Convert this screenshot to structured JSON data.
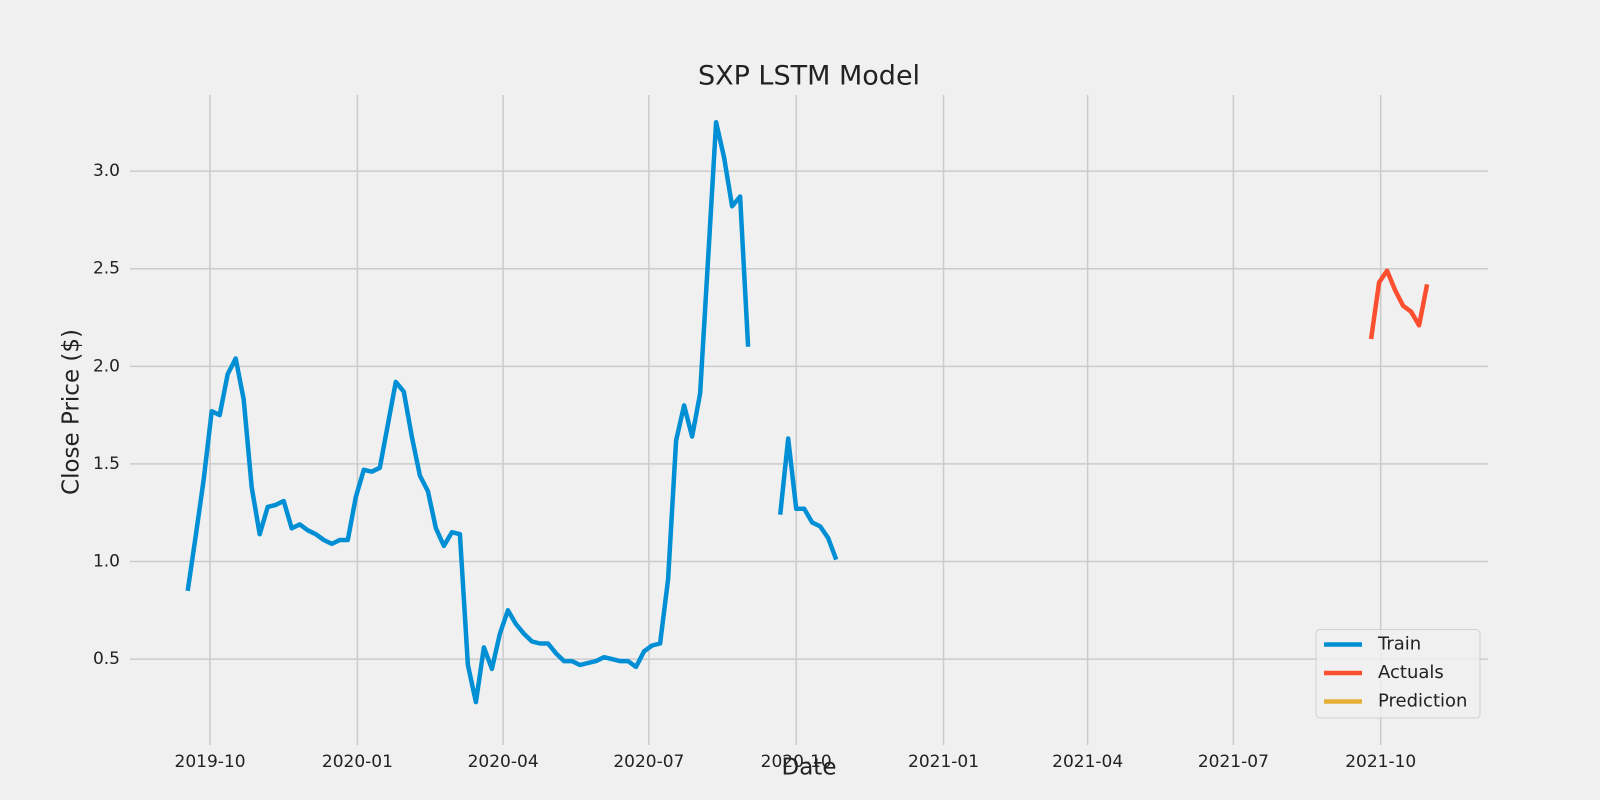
{
  "chart_data": {
    "type": "line",
    "title": "SXP LSTM Model",
    "xlabel": "Date",
    "ylabel": "Close Price ($)",
    "xlim": [
      "2019-08-12",
      "2021-12-07"
    ],
    "xticks": [
      {
        "value": "2019-10-01",
        "label": "2019-10"
      },
      {
        "value": "2020-01-01",
        "label": "2020-01"
      },
      {
        "value": "2020-04-01",
        "label": "2020-04"
      },
      {
        "value": "2020-07-01",
        "label": "2020-07"
      },
      {
        "value": "2020-10-01",
        "label": "2020-10"
      },
      {
        "value": "2021-01-01",
        "label": "2021-01"
      },
      {
        "value": "2021-04-01",
        "label": "2021-04"
      },
      {
        "value": "2021-07-01",
        "label": "2021-07"
      },
      {
        "value": "2021-10-01",
        "label": "2021-10"
      }
    ],
    "ylim": [
      0.06,
      3.39
    ],
    "yticks": [
      0.5,
      {
        "value": 1,
        "label": "1.0"
      },
      1.5,
      {
        "value": 2,
        "label": "2.0"
      },
      2.5,
      {
        "value": 3,
        "label": "3.0"
      }
    ],
    "grid": true,
    "legend": "lower right",
    "series": [
      {
        "name": "Train",
        "color": "#008fd5",
        "x": [
          "2019-09-17",
          "2019-09-22",
          "2019-09-27",
          "2019-10-02",
          "2019-10-07",
          "2019-10-12",
          "2019-10-17",
          "2019-10-22",
          "2019-10-27",
          "2019-11-01",
          "2019-11-06",
          "2019-11-11",
          "2019-11-16",
          "2019-11-21",
          "2019-11-26",
          "2019-12-01",
          "2019-12-06",
          "2019-12-11",
          "2019-12-16",
          "2019-12-21",
          "2019-12-26",
          "2019-12-31",
          "2020-01-05",
          "2020-01-10",
          "2020-01-15",
          "2020-01-20",
          "2020-01-25",
          "2020-01-30",
          "2020-02-04",
          "2020-02-09",
          "2020-02-14",
          "2020-02-19",
          "2020-02-24",
          "2020-02-29",
          "2020-03-05",
          "2020-03-10",
          "2020-03-15",
          "2020-03-20",
          "2020-03-25",
          "2020-03-30",
          "2020-04-04",
          "2020-04-09",
          "2020-04-14",
          "2020-04-19",
          "2020-04-24",
          "2020-04-29",
          "2020-05-04",
          "2020-05-09",
          "2020-05-14",
          "2020-05-19",
          "2020-05-24",
          "2020-05-29",
          "2020-06-03",
          "2020-06-08",
          "2020-06-13",
          "2020-06-18",
          "2020-06-23",
          "2020-06-28",
          "2020-07-03",
          "2020-07-08",
          "2020-07-13",
          "2020-07-18",
          "2020-07-23",
          "2020-07-28",
          "2020-08-02",
          "2020-08-07",
          "2020-08-12",
          "2020-08-17",
          "2020-08-22",
          "2020-08-27",
          "2020-09-01",
          "2020-09-06",
          "2020-09-21",
          "2020-09-26",
          "2020-10-01",
          "2020-10-06",
          "2020-10-11",
          "2020-10-16",
          "2020-10-21",
          "2020-10-26"
        ],
        "values": [
          0.85,
          1.13,
          1.42,
          1.77,
          1.75,
          1.96,
          2.04,
          1.83,
          1.38,
          1.14,
          1.28,
          1.29,
          1.31,
          1.17,
          1.19,
          1.16,
          1.14,
          1.11,
          1.09,
          1.11,
          1.11,
          1.33,
          1.47,
          1.46,
          1.48,
          1.7,
          1.92,
          1.87,
          1.64,
          1.44,
          1.36,
          1.17,
          1.08,
          1.15,
          1.14,
          0.47,
          0.28,
          0.56,
          0.45,
          0.63,
          0.75,
          0.68,
          0.63,
          0.59,
          0.58,
          0.58,
          0.53,
          0.49,
          0.49,
          0.47,
          0.48,
          0.49,
          0.51,
          0.5,
          0.49,
          0.49,
          0.46,
          0.54,
          0.57,
          0.58,
          0.91,
          1.62,
          1.8,
          1.64,
          1.86,
          2.55,
          3.25,
          3.07,
          2.82,
          2.87,
          2.1,
          null,
          1.24,
          1.63,
          1.27,
          1.27,
          1.2,
          1.18,
          1.12,
          1.01
        ]
      },
      {
        "name": "Actuals",
        "color": "#fc4f30",
        "x": [
          "2021-09-25",
          "2021-09-30",
          "2021-10-05",
          "2021-10-10",
          "2021-10-15",
          "2021-10-20",
          "2021-10-25",
          "2021-10-30"
        ],
        "values": [
          2.14,
          2.43,
          2.49,
          2.39,
          2.31,
          2.28,
          2.21,
          2.42
        ]
      },
      {
        "name": "Prediction",
        "color": "#e5ae38",
        "x": [],
        "values": []
      }
    ]
  }
}
